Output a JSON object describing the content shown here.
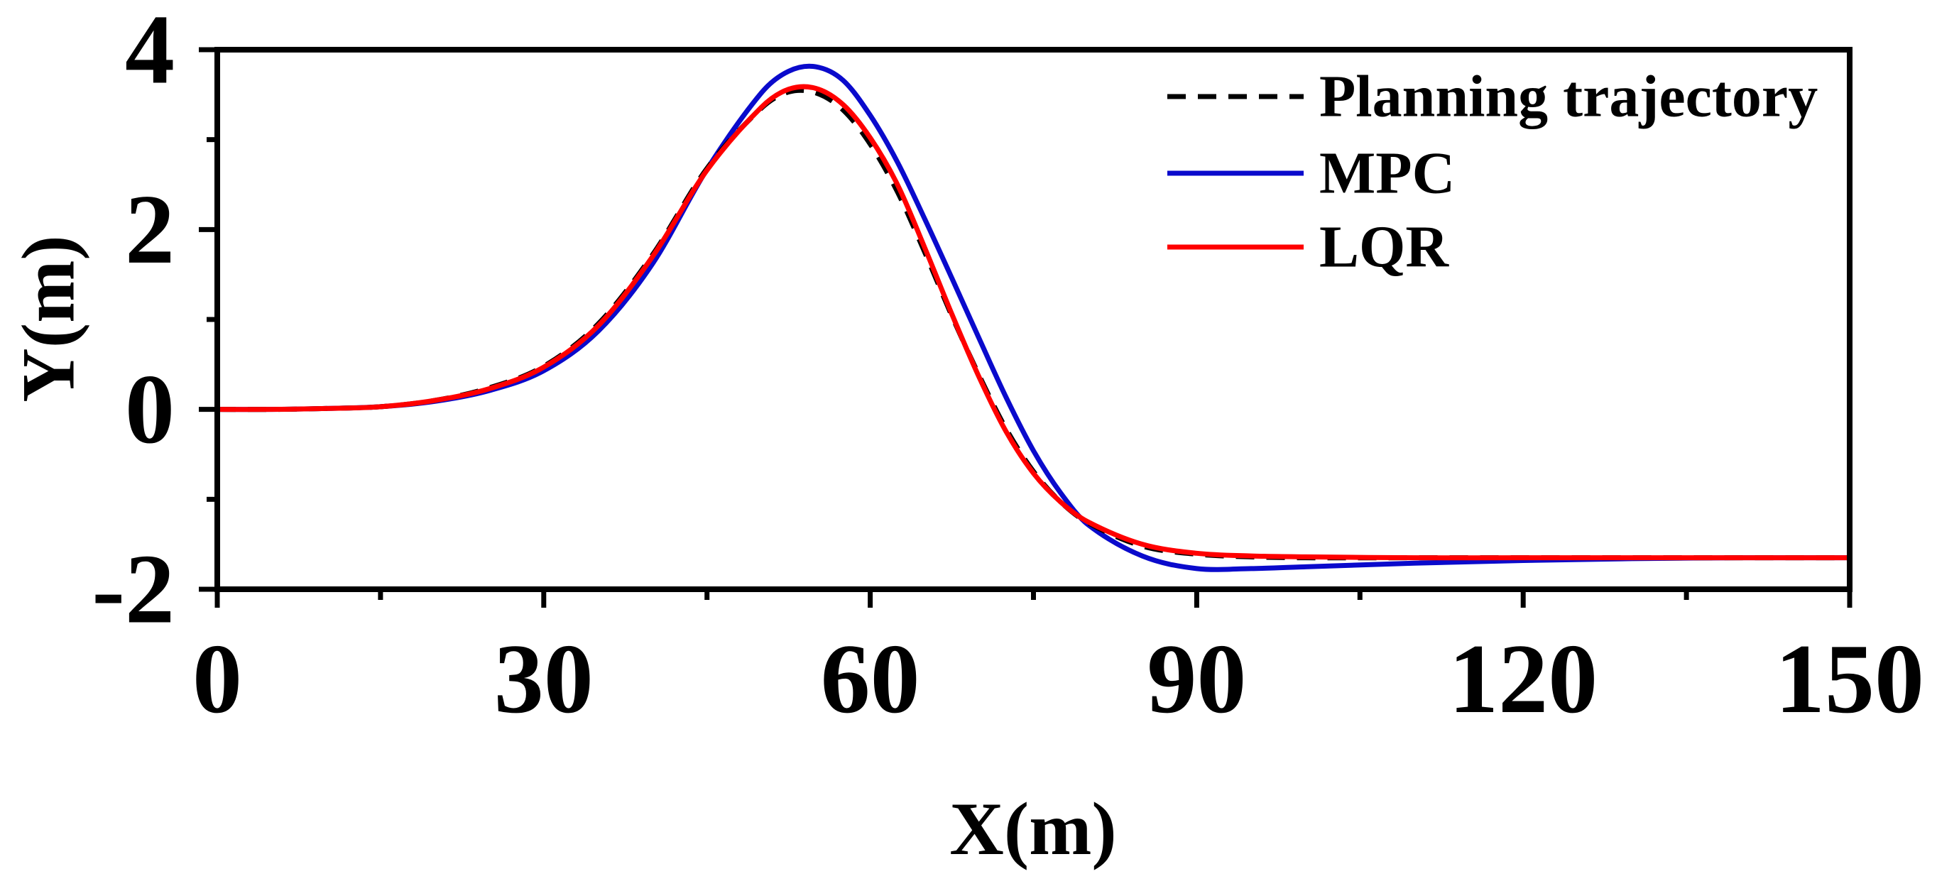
{
  "chart_data": {
    "type": "line",
    "xlabel": "X(m)",
    "ylabel": "Y(m)",
    "xlim": [
      0,
      150
    ],
    "ylim": [
      -2,
      4
    ],
    "xticks": [
      0,
      30,
      60,
      90,
      120,
      150
    ],
    "xtick_labels": [
      "0",
      "30",
      "60",
      "90",
      "120",
      "150"
    ],
    "xminor_ticks": [
      15,
      45,
      75,
      105,
      135
    ],
    "yticks": [
      -2,
      0,
      2,
      4
    ],
    "ytick_labels": [
      "-2",
      "0",
      "2",
      "4"
    ],
    "yminor_ticks": [
      -1,
      1,
      3
    ],
    "grid": false,
    "legend": "top-right",
    "x": [
      0,
      5,
      10,
      15,
      20,
      25,
      30,
      35,
      40,
      45,
      50,
      52.5,
      55,
      57.5,
      60,
      62.5,
      65,
      67.5,
      70,
      72.5,
      75,
      77.5,
      80,
      85,
      90,
      95,
      100,
      110,
      120,
      130,
      140,
      150
    ],
    "series": [
      {
        "name": "Planning trajectory",
        "color": "#000000",
        "dashed": true,
        "values": [
          0,
          0,
          0.01,
          0.03,
          0.1,
          0.24,
          0.48,
          0.95,
          1.72,
          2.68,
          3.35,
          3.53,
          3.52,
          3.33,
          2.95,
          2.42,
          1.75,
          1.04,
          0.38,
          -0.22,
          -0.69,
          -1.03,
          -1.26,
          -1.52,
          -1.61,
          -1.64,
          -1.65,
          -1.65,
          -1.65,
          -1.65,
          -1.65,
          -1.65
        ]
      },
      {
        "name": "MPC",
        "color": "#0A0ACC",
        "dashed": false,
        "values": [
          0,
          0,
          0.01,
          0.03,
          0.09,
          0.21,
          0.43,
          0.87,
          1.62,
          2.67,
          3.52,
          3.76,
          3.81,
          3.66,
          3.27,
          2.75,
          2.12,
          1.46,
          0.79,
          0.13,
          -0.46,
          -0.93,
          -1.28,
          -1.63,
          -1.77,
          -1.77,
          -1.75,
          -1.71,
          -1.68,
          -1.66,
          -1.65,
          -1.65
        ]
      },
      {
        "name": "LQR",
        "color": "#FF0000",
        "dashed": false,
        "values": [
          0,
          0,
          0.01,
          0.03,
          0.1,
          0.23,
          0.47,
          0.93,
          1.7,
          2.66,
          3.36,
          3.56,
          3.57,
          3.39,
          3.02,
          2.5,
          1.8,
          1.06,
          0.36,
          -0.25,
          -0.71,
          -1.03,
          -1.25,
          -1.5,
          -1.6,
          -1.63,
          -1.64,
          -1.65,
          -1.65,
          -1.65,
          -1.65,
          -1.65
        ]
      }
    ]
  }
}
